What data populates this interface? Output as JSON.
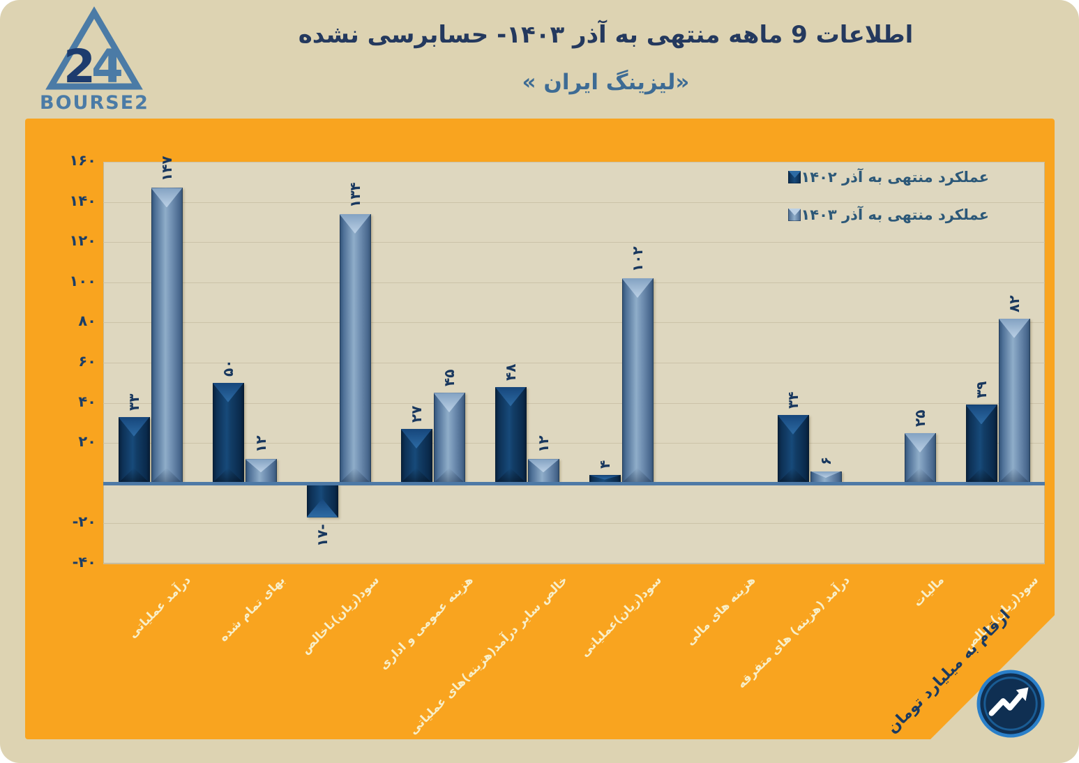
{
  "header": {
    "title": "اطلاعات 9 ماهه منتهی به آذر  ۱۴۰۳- حسابرسی نشده",
    "subtitle": "«لیزینگ ایران »",
    "logo": {
      "digit_2": "2",
      "digit_4": "4",
      "brand": "BOURSE24"
    }
  },
  "chart_data": {
    "type": "bar",
    "title": "اطلاعات 9 ماهه منتهی به آذر ۱۴۰۳- حسابرسی نشده",
    "subtitle": "«لیزینگ ایران »",
    "unit_note": "ارقام به میلیارد تومان",
    "legend_position": "top-right",
    "grid": true,
    "y_axis": {
      "min": -40,
      "max": 160,
      "step": 20,
      "ticks": [
        {
          "v": 160,
          "label": "۱۶۰"
        },
        {
          "v": 140,
          "label": "۱۴۰"
        },
        {
          "v": 120,
          "label": "۱۲۰"
        },
        {
          "v": 100,
          "label": "۱۰۰"
        },
        {
          "v": 80,
          "label": "۸۰"
        },
        {
          "v": 60,
          "label": "۶۰"
        },
        {
          "v": 40,
          "label": "۴۰"
        },
        {
          "v": 20,
          "label": "۲۰"
        },
        {
          "v": -20,
          "label": "-۲۰"
        },
        {
          "v": -40,
          "label": "-۴۰"
        }
      ]
    },
    "categories": [
      "درآمد عملیاتی",
      "بهای تمام شده",
      "سود(زیان)ناخالص",
      "هزینه عمومی و اداری",
      "خالص سایر درآمد(هزینه)های عملیاتی",
      "سود(زیان)عملیاتی",
      "هزینه های مالی",
      "درآمد (هزینه) های متفرقه",
      "مالیات",
      "سود(زیان) خالص"
    ],
    "series": [
      {
        "name": "عملکرد منتهی به آذر ۱۴۰۲",
        "key": "dark",
        "values": [
          33,
          50,
          -17,
          27,
          48,
          4,
          null,
          34,
          null,
          39
        ],
        "labels": [
          "۳۳",
          "۵۰",
          "-۱۷",
          "۲۷",
          "۴۸",
          "۴",
          "",
          "۳۴",
          "",
          "۳۹"
        ]
      },
      {
        "name": "عملکرد منتهی به آذر ۱۴۰۳",
        "key": "light",
        "values": [
          147,
          12,
          134,
          45,
          12,
          102,
          null,
          6,
          25,
          82
        ],
        "labels": [
          "۱۴۷",
          "۱۲",
          "۱۳۴",
          "۴۵",
          "۱۲",
          "۱۰۲",
          "",
          "۶",
          "۲۵",
          "۸۲"
        ]
      }
    ],
    "colors": {
      "series_1402": "#123d66",
      "series_1403": "#7493b5",
      "panel_orange": "#f9a41f",
      "plot_background": "#ded7bf",
      "page_background": "#ddd3b2",
      "text_navy": "#1b3a60",
      "category_label": "#f8efc9",
      "gridline": "#cbc2a8",
      "zero_axis": "#4d79a6"
    }
  }
}
